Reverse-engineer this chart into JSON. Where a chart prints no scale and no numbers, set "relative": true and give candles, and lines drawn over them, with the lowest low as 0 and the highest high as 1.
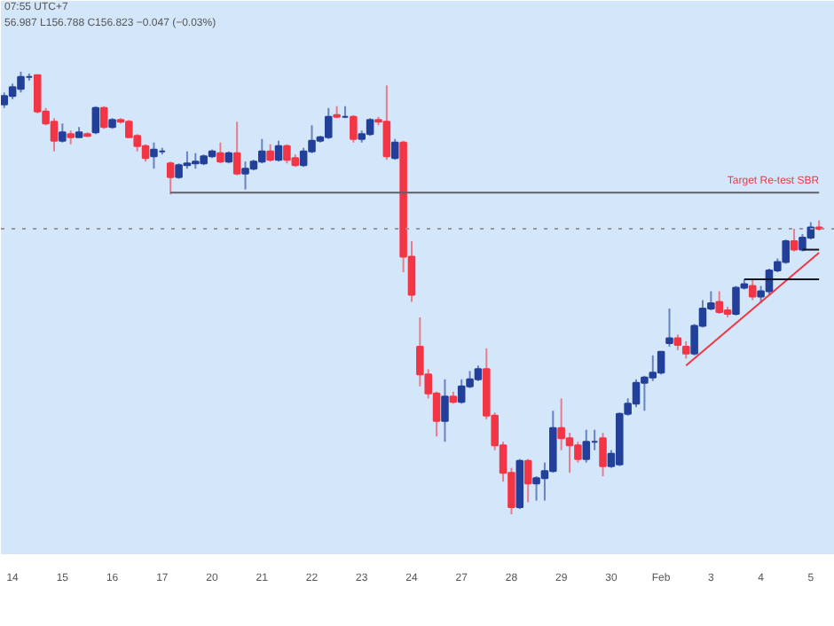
{
  "chart_data": {
    "type": "candlestick",
    "relative": true,
    "grid": false,
    "legend": false,
    "tick_labels": "x",
    "annotations": [
      "07:55 UTC+7",
      "56.987 L156.788 C156.823 −0.047 (−0.03%)"
    ],
    "categories": [
      null,
      "14",
      null,
      null,
      null,
      null,
      null,
      "15",
      null,
      null,
      null,
      null,
      null,
      "16",
      null,
      null,
      null,
      null,
      null,
      "17",
      null,
      null,
      null,
      null,
      null,
      "20",
      null,
      null,
      null,
      null,
      null,
      "21",
      null,
      null,
      null,
      null,
      null,
      "22",
      null,
      null,
      null,
      null,
      null,
      "23",
      null,
      null,
      null,
      null,
      null,
      "24",
      null,
      null,
      null,
      null,
      null,
      "27",
      null,
      null,
      null,
      null,
      null,
      "28",
      null,
      null,
      null,
      null,
      null,
      "29",
      null,
      null,
      null,
      null,
      null,
      "30",
      null,
      null,
      null,
      null,
      null,
      "Feb",
      null,
      null,
      null,
      null,
      null,
      "3",
      null,
      null,
      null,
      null,
      null,
      "4",
      null,
      null,
      null,
      null,
      null,
      "5",
      null
    ],
    "ohlc": [
      [
        0.926,
        0.953,
        0.918,
        0.945
      ],
      [
        0.945,
        0.973,
        0.938,
        0.965
      ],
      [
        0.961,
        1.0,
        0.953,
        0.988
      ],
      [
        0.988,
        0.996,
        0.98,
        0.988
      ],
      [
        0.992,
        0.992,
        0.906,
        0.91
      ],
      [
        0.91,
        0.918,
        0.879,
        0.883
      ],
      [
        0.887,
        0.895,
        0.82,
        0.844
      ],
      [
        0.844,
        0.883,
        0.84,
        0.863
      ],
      [
        0.859,
        0.867,
        0.836,
        0.852
      ],
      [
        0.852,
        0.875,
        0.852,
        0.863
      ],
      [
        0.859,
        0.863,
        0.852,
        0.855
      ],
      [
        0.863,
        0.922,
        0.859,
        0.918
      ],
      [
        0.918,
        0.922,
        0.871,
        0.875
      ],
      [
        0.875,
        0.895,
        0.871,
        0.891
      ],
      [
        0.891,
        0.895,
        0.883,
        0.887
      ],
      [
        0.887,
        0.891,
        0.852,
        0.852
      ],
      [
        0.855,
        0.859,
        0.82,
        0.832
      ],
      [
        0.832,
        0.836,
        0.797,
        0.805
      ],
      [
        0.809,
        0.84,
        0.781,
        0.824
      ],
      [
        0.82,
        0.828,
        0.813,
        0.82
      ],
      [
        0.793,
        0.797,
        0.723,
        0.762
      ],
      [
        0.762,
        0.793,
        0.758,
        0.789
      ],
      [
        0.789,
        0.82,
        0.781,
        0.793
      ],
      [
        0.793,
        0.816,
        0.781,
        0.797
      ],
      [
        0.793,
        0.813,
        0.789,
        0.809
      ],
      [
        0.809,
        0.824,
        0.805,
        0.82
      ],
      [
        0.816,
        0.84,
        0.793,
        0.797
      ],
      [
        0.797,
        0.82,
        0.793,
        0.816
      ],
      [
        0.816,
        0.887,
        0.766,
        0.77
      ],
      [
        0.77,
        0.797,
        0.734,
        0.781
      ],
      [
        0.781,
        0.801,
        0.777,
        0.797
      ],
      [
        0.797,
        0.848,
        0.793,
        0.82
      ],
      [
        0.82,
        0.836,
        0.797,
        0.801
      ],
      [
        0.801,
        0.844,
        0.797,
        0.832
      ],
      [
        0.832,
        0.836,
        0.793,
        0.801
      ],
      [
        0.805,
        0.813,
        0.785,
        0.789
      ],
      [
        0.789,
        0.828,
        0.785,
        0.82
      ],
      [
        0.82,
        0.879,
        0.816,
        0.844
      ],
      [
        0.844,
        0.855,
        0.84,
        0.852
      ],
      [
        0.852,
        0.918,
        0.848,
        0.898
      ],
      [
        0.902,
        0.922,
        0.895,
        0.898
      ],
      [
        0.898,
        0.922,
        0.895,
        0.898
      ],
      [
        0.898,
        0.902,
        0.84,
        0.848
      ],
      [
        0.848,
        0.867,
        0.84,
        0.859
      ],
      [
        0.859,
        0.895,
        0.855,
        0.891
      ],
      [
        0.891,
        0.898,
        0.879,
        0.887
      ],
      [
        0.887,
        0.969,
        0.801,
        0.809
      ],
      [
        0.805,
        0.848,
        0.801,
        0.84
      ],
      [
        0.84,
        0.844,
        0.547,
        0.582
      ],
      [
        0.582,
        0.617,
        0.48,
        0.496
      ],
      [
        0.379,
        0.445,
        0.289,
        0.316
      ],
      [
        0.316,
        0.328,
        0.262,
        0.273
      ],
      [
        0.273,
        0.277,
        0.176,
        0.211
      ],
      [
        0.211,
        0.305,
        0.164,
        0.266
      ],
      [
        0.266,
        0.277,
        0.25,
        0.254
      ],
      [
        0.254,
        0.305,
        0.25,
        0.289
      ],
      [
        0.289,
        0.324,
        0.285,
        0.305
      ],
      [
        0.305,
        0.336,
        0.301,
        0.328
      ],
      [
        0.328,
        0.375,
        0.215,
        0.223
      ],
      [
        0.223,
        0.23,
        0.145,
        0.156
      ],
      [
        0.156,
        0.164,
        0.074,
        0.094
      ],
      [
        0.094,
        0.105,
        0.0,
        0.016
      ],
      [
        0.016,
        0.125,
        0.012,
        0.121
      ],
      [
        0.121,
        0.125,
        0.027,
        0.07
      ],
      [
        0.07,
        0.086,
        0.031,
        0.082
      ],
      [
        0.082,
        0.117,
        0.031,
        0.098
      ],
      [
        0.098,
        0.234,
        0.094,
        0.195
      ],
      [
        0.195,
        0.262,
        0.145,
        0.172
      ],
      [
        0.172,
        0.184,
        0.094,
        0.156
      ],
      [
        0.156,
        0.164,
        0.117,
        0.125
      ],
      [
        0.125,
        0.191,
        0.117,
        0.164
      ],
      [
        0.164,
        0.191,
        0.145,
        0.164
      ],
      [
        0.172,
        0.184,
        0.086,
        0.109
      ],
      [
        0.109,
        0.145,
        0.105,
        0.137
      ],
      [
        0.113,
        0.23,
        0.109,
        0.227
      ],
      [
        0.227,
        0.262,
        0.223,
        0.25
      ],
      [
        0.25,
        0.305,
        0.242,
        0.297
      ],
      [
        0.297,
        0.313,
        0.234,
        0.309
      ],
      [
        0.309,
        0.359,
        0.301,
        0.32
      ],
      [
        0.32,
        0.367,
        0.316,
        0.367
      ],
      [
        0.387,
        0.465,
        0.379,
        0.398
      ],
      [
        0.398,
        0.406,
        0.371,
        0.383
      ],
      [
        0.379,
        0.391,
        0.352,
        0.363
      ],
      [
        0.363,
        0.43,
        0.359,
        0.426
      ],
      [
        0.426,
        0.484,
        0.422,
        0.465
      ],
      [
        0.465,
        0.504,
        0.461,
        0.477
      ],
      [
        0.48,
        0.504,
        0.453,
        0.457
      ],
      [
        0.461,
        0.469,
        0.445,
        0.453
      ],
      [
        0.453,
        0.516,
        0.449,
        0.512
      ],
      [
        0.512,
        0.531,
        0.508,
        0.52
      ],
      [
        0.516,
        0.531,
        0.484,
        0.492
      ],
      [
        0.492,
        0.516,
        0.477,
        0.504
      ],
      [
        0.504,
        0.555,
        0.496,
        0.551
      ],
      [
        0.551,
        0.578,
        0.547,
        0.57
      ],
      [
        0.57,
        0.621,
        0.566,
        0.617
      ],
      [
        0.617,
        0.645,
        0.594,
        0.598
      ],
      [
        0.598,
        0.633,
        0.594,
        0.625
      ],
      [
        0.625,
        0.66,
        0.621,
        0.648
      ],
      [
        0.648,
        0.664,
        0.641,
        0.645
      ]
    ],
    "series": [
      {
        "type": "line",
        "color": "#f23645",
        "values": [
          null,
          null,
          null,
          null,
          null,
          null,
          null,
          null,
          null,
          null,
          null,
          null,
          null,
          null,
          null,
          null,
          null,
          null,
          null,
          null,
          null,
          null,
          null,
          null,
          null,
          null,
          null,
          null,
          null,
          null,
          null,
          null,
          null,
          null,
          null,
          null,
          null,
          null,
          null,
          null,
          null,
          null,
          null,
          null,
          null,
          null,
          null,
          null,
          null,
          null,
          null,
          null,
          null,
          null,
          null,
          null,
          null,
          null,
          null,
          null,
          null,
          null,
          null,
          null,
          null,
          null,
          null,
          null,
          null,
          null,
          null,
          null,
          null,
          null,
          null,
          null,
          null,
          null,
          null,
          null,
          null,
          null,
          0.336,
          null,
          null,
          null,
          null,
          null,
          null,
          null,
          null,
          null,
          null,
          null,
          null,
          null,
          null,
          null,
          0.591
        ]
      },
      {
        "type": "line",
        "color": "#131722",
        "values": [
          null,
          null,
          null,
          null,
          null,
          null,
          null,
          null,
          null,
          null,
          null,
          null,
          null,
          null,
          null,
          null,
          null,
          null,
          null,
          null,
          null,
          null,
          null,
          null,
          null,
          null,
          null,
          null,
          null,
          null,
          null,
          null,
          null,
          null,
          null,
          null,
          null,
          null,
          null,
          null,
          null,
          null,
          null,
          null,
          null,
          null,
          null,
          null,
          null,
          null,
          null,
          null,
          null,
          null,
          null,
          null,
          null,
          null,
          null,
          null,
          null,
          null,
          null,
          null,
          null,
          null,
          null,
          null,
          null,
          null,
          null,
          null,
          null,
          null,
          null,
          null,
          null,
          null,
          null,
          null,
          null,
          null,
          null,
          null,
          null,
          null,
          null,
          null,
          null,
          0.531,
          null,
          null,
          null,
          null,
          null,
          null,
          null,
          null,
          0.531
        ]
      },
      {
        "type": "line",
        "color": "#131722",
        "values": [
          null,
          null,
          null,
          null,
          null,
          null,
          null,
          null,
          null,
          null,
          null,
          null,
          null,
          null,
          null,
          null,
          null,
          null,
          null,
          null,
          null,
          null,
          null,
          null,
          null,
          null,
          null,
          null,
          null,
          null,
          null,
          null,
          null,
          null,
          null,
          null,
          null,
          null,
          null,
          null,
          null,
          null,
          null,
          null,
          null,
          null,
          null,
          null,
          null,
          null,
          null,
          null,
          null,
          null,
          null,
          null,
          null,
          null,
          null,
          null,
          null,
          null,
          null,
          null,
          null,
          null,
          null,
          null,
          null,
          null,
          null,
          null,
          null,
          null,
          null,
          null,
          null,
          null,
          null,
          null,
          null,
          null,
          null,
          null,
          null,
          null,
          null,
          null,
          null,
          null,
          null,
          null,
          null,
          null,
          null,
          null,
          0.598,
          null,
          0.598
        ]
      },
      {
        "type": "line",
        "color": "#5d606b",
        "name": "Target Re-test SBR",
        "values": [
          null,
          null,
          null,
          null,
          null,
          null,
          null,
          null,
          null,
          null,
          null,
          null,
          null,
          null,
          null,
          null,
          null,
          null,
          null,
          null,
          0.727,
          null,
          null,
          null,
          null,
          null,
          null,
          null,
          null,
          null,
          null,
          null,
          null,
          null,
          null,
          null,
          null,
          null,
          null,
          null,
          null,
          null,
          null,
          null,
          null,
          null,
          null,
          null,
          null,
          null,
          null,
          null,
          null,
          null,
          null,
          null,
          null,
          null,
          null,
          null,
          null,
          null,
          null,
          null,
          null,
          null,
          null,
          null,
          null,
          null,
          null,
          null,
          null,
          null,
          null,
          null,
          null,
          null,
          null,
          null,
          null,
          null,
          null,
          null,
          null,
          null,
          null,
          null,
          null,
          null,
          null,
          null,
          null,
          null,
          null,
          null,
          null,
          null,
          0.727
        ]
      }
    ],
    "ref_lines": [
      {
        "axis": "y",
        "value": 0.645,
        "label": null,
        "color": "#9598a1",
        "line_style": "dotted"
      }
    ]
  }
}
